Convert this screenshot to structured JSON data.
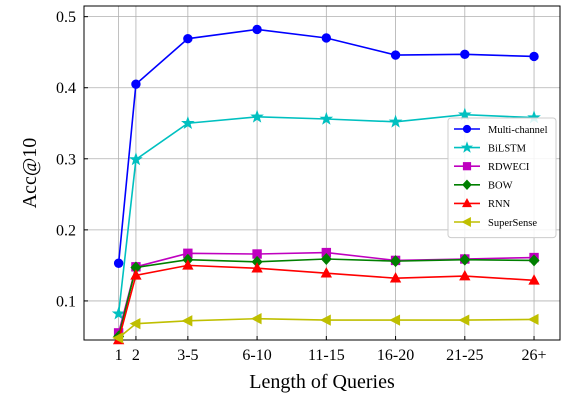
{
  "chart_data": {
    "type": "line",
    "title": "",
    "xlabel": "Length of Queries",
    "ylabel": "Acc@10",
    "ylim": [
      0.045,
      0.515
    ],
    "yticks": [
      0.1,
      0.2,
      0.3,
      0.4,
      0.5
    ],
    "ytick_labels": [
      "0.1",
      "0.2",
      "0.3",
      "0.4",
      "0.5"
    ],
    "categories": [
      "1",
      "2",
      "3-5",
      "6-10",
      "11-15",
      "16-20",
      "21-25",
      "26+"
    ],
    "category_positions": [
      1,
      2,
      5,
      9,
      13,
      17,
      21,
      25
    ],
    "xlim": [
      -1,
      26.5
    ],
    "grid": true,
    "legend_position": "right",
    "series": [
      {
        "name": "Multi-channel",
        "color": "#0000ff",
        "marker": "circle",
        "values": [
          0.153,
          0.405,
          0.469,
          0.482,
          0.47,
          0.446,
          0.447,
          0.444
        ]
      },
      {
        "name": "BiLSTM",
        "color": "#00c0c0",
        "marker": "star",
        "values": [
          0.082,
          0.299,
          0.35,
          0.359,
          0.356,
          0.352,
          0.362,
          0.358
        ]
      },
      {
        "name": "RDWECI",
        "color": "#bf00bf",
        "marker": "square",
        "values": [
          0.055,
          0.148,
          0.167,
          0.166,
          0.168,
          0.157,
          0.159,
          0.161
        ]
      },
      {
        "name": "BOW",
        "color": "#007f00",
        "marker": "diamond",
        "values": [
          0.05,
          0.147,
          0.158,
          0.155,
          0.159,
          0.156,
          0.158,
          0.157
        ]
      },
      {
        "name": "RNN",
        "color": "#ff0000",
        "marker": "triangle-up",
        "values": [
          0.045,
          0.136,
          0.15,
          0.146,
          0.139,
          0.132,
          0.135,
          0.129
        ]
      },
      {
        "name": "SuperSense",
        "color": "#bfbf00",
        "marker": "triangle-left",
        "values": [
          0.048,
          0.068,
          0.072,
          0.075,
          0.073,
          0.073,
          0.073,
          0.074
        ]
      }
    ]
  }
}
